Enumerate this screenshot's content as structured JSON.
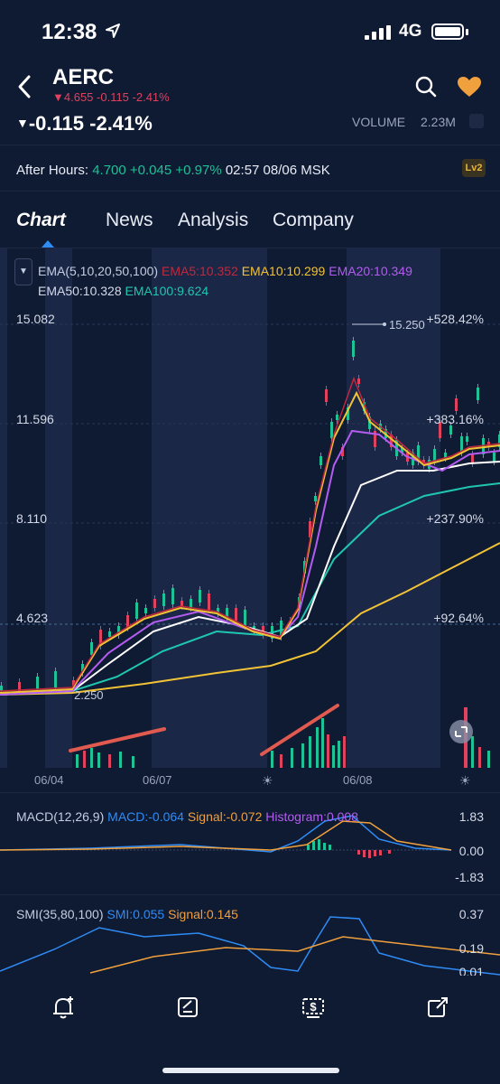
{
  "status_bar": {
    "time": "12:38",
    "network": "4G"
  },
  "header": {
    "ticker": "AERC",
    "subquote": "4.655 -0.115 -2.41%",
    "change": "-0.115 -2.41%",
    "volume_label": "VOLUME",
    "volume_value": "2.23M"
  },
  "after_hours": {
    "label": "After Hours:",
    "price_change": "4.700 +0.045 +0.97%",
    "time": "02:57 08/06 MSK",
    "badge": "Lv2"
  },
  "tabs": [
    {
      "label": "Chart",
      "active": true
    },
    {
      "label": "News"
    },
    {
      "label": "Analysis"
    },
    {
      "label": "Company"
    }
  ],
  "ema_legend": {
    "title": "EMA(5,10,20,50,100)",
    "ema5": "EMA5:10.352",
    "ema10": "EMA10:10.299",
    "ema20": "EMA20:10.349",
    "ema50": "EMA50:10.328",
    "ema100": "EMA100:9.624"
  },
  "price_axis": {
    "left": [
      "15.082",
      "11.596",
      "8.110",
      "4.623"
    ],
    "right": [
      "+528.42%",
      "+383.16%",
      "+237.90%",
      "+92.64%"
    ],
    "high_marker": "15.250",
    "low_marker": "2.250"
  },
  "x_axis": [
    "06/04",
    "06/07",
    "06/08"
  ],
  "macd": {
    "title": "MACD(12,26,9)",
    "macd": "MACD:-0.064",
    "signal": "Signal:-0.072",
    "histogram": "Histogram:0.008",
    "ticks": [
      "1.83",
      "0.00",
      "-1.83"
    ]
  },
  "smi": {
    "title": "SMI(35,80,100)",
    "smi": "SMI:0.055",
    "signal": "Signal:0.145",
    "ticks": [
      "0.37",
      "0.19",
      "0.01"
    ]
  },
  "toolbar": [
    "alert-add-icon",
    "note-icon",
    "trade-icon",
    "share-icon"
  ],
  "colors": {
    "bg": "#0f1a33",
    "up": "#1fc196",
    "down": "#e0415d",
    "ema5": "#c0283d",
    "ema10": "#f2c335",
    "ema20": "#b45cf0",
    "ema50": "#ffffff",
    "ema100": "#1fc6b0",
    "accent": "#2f8cf5"
  }
}
